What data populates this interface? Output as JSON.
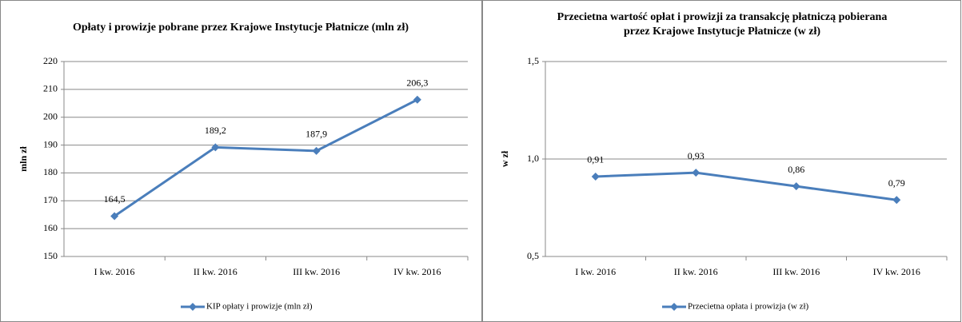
{
  "chart_data": [
    {
      "type": "line",
      "title": [
        "Opłaty i prowizje pobrane przez Krajowe Instytucje Płatnicze (mln zł)"
      ],
      "y_label": "mln zł",
      "categories": [
        "I kw. 2016",
        "II kw. 2016",
        "III kw. 2016",
        "IV kw. 2016"
      ],
      "series": [
        {
          "name": "KIP opłaty i prowizje (mln zł)",
          "color": "#4a7ebb",
          "values": [
            164.5,
            189.2,
            187.9,
            206.3
          ],
          "value_labels": [
            "164,5",
            "189,2",
            "187,9",
            "206,3"
          ]
        }
      ],
      "ylim": [
        150,
        220
      ],
      "yticks": [
        150,
        160,
        170,
        180,
        190,
        200,
        210,
        220
      ],
      "grid": true,
      "legend": "bottom"
    },
    {
      "type": "line",
      "title": [
        "Przecietna wartość opłat i prowizji za transakcję płatniczą pobierana",
        "przez Krajowe Instytucje Płatnicze (w zł)"
      ],
      "y_label": "w zł",
      "categories": [
        "I kw. 2016",
        "II kw. 2016",
        "III kw. 2016",
        "IV kw. 2016"
      ],
      "series": [
        {
          "name": "Przecietna opłata i prowizja (w zł)",
          "color": "#4a7ebb",
          "values": [
            0.91,
            0.93,
            0.86,
            0.79
          ],
          "value_labels": [
            "0,91",
            "0,93",
            "0,86",
            "0,79"
          ]
        }
      ],
      "ylim": [
        0.5,
        1.5
      ],
      "yticks": [
        {
          "value": 0.5,
          "label": "0,5"
        },
        {
          "value": 1.0,
          "label": "1,0"
        },
        {
          "value": 1.5,
          "label": "1,5"
        }
      ],
      "grid": true,
      "legend": "bottom"
    }
  ]
}
